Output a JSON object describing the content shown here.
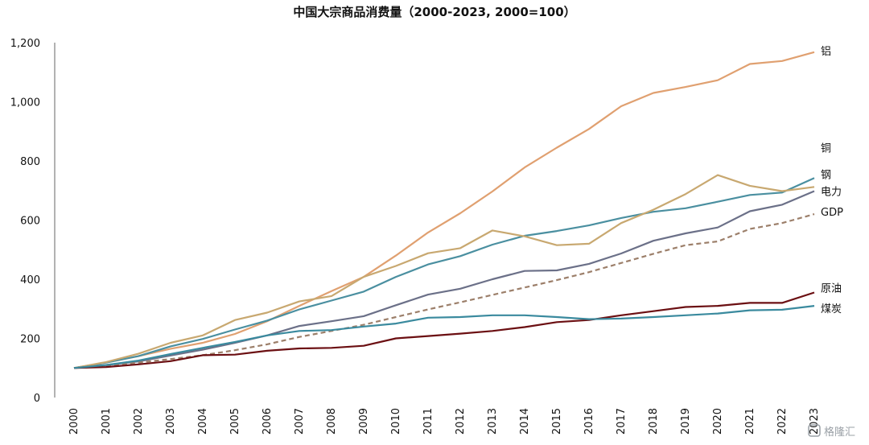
{
  "chart_data": {
    "type": "line",
    "title": "中国大宗商品消费量（2000-2023, 2000=100）",
    "xlabel": "",
    "ylabel": "",
    "x": [
      "2000",
      "2001",
      "2002",
      "2003",
      "2004",
      "2005",
      "2006",
      "2007",
      "2008",
      "2009",
      "2010",
      "2011",
      "2012",
      "2013",
      "2014",
      "2015",
      "2016",
      "2017",
      "2018",
      "2019",
      "2020",
      "2021",
      "2022",
      "2023"
    ],
    "ylim": [
      0,
      1200
    ],
    "yticks": [
      0,
      200,
      400,
      600,
      800,
      1000,
      1200
    ],
    "ytick_labels": [
      "0",
      "200",
      "400",
      "600",
      "800",
      "1,000",
      "1,200"
    ],
    "grid": false,
    "series": [
      {
        "name": "铝",
        "color": "#e0a070",
        "dash": false,
        "values": [
          100,
          118,
          140,
          165,
          185,
          215,
          258,
          310,
          360,
          408,
          480,
          558,
          623,
          697,
          778,
          845,
          908,
          985,
          1030,
          1050,
          1073,
          1128,
          1138,
          1168
        ]
      },
      {
        "name": "铜",
        "color": "#4a8fa0",
        "dash": false,
        "values": [
          100,
          118,
          140,
          173,
          198,
          230,
          260,
          298,
          328,
          358,
          408,
          450,
          478,
          517,
          547,
          563,
          582,
          607,
          628,
          640,
          662,
          685,
          693,
          742
        ]
      },
      {
        "name": "钢",
        "color": "#c8a870",
        "dash": false,
        "values": [
          100,
          120,
          148,
          185,
          210,
          262,
          287,
          325,
          343,
          408,
          445,
          488,
          505,
          565,
          545,
          515,
          520,
          590,
          635,
          688,
          752,
          716,
          698,
          712
        ]
      },
      {
        "name": "电力",
        "color": "#6b7088",
        "dash": false,
        "values": [
          100,
          110,
          122,
          142,
          162,
          185,
          210,
          242,
          258,
          275,
          312,
          348,
          368,
          400,
          428,
          430,
          452,
          487,
          530,
          555,
          575,
          630,
          652,
          698
        ]
      },
      {
        "name": "GDP",
        "color": "#9c7f6a",
        "dash": true,
        "values": [
          100,
          108,
          118,
          130,
          143,
          160,
          180,
          205,
          225,
          246,
          272,
          298,
          322,
          347,
          372,
          397,
          424,
          455,
          486,
          515,
          528,
          570,
          590,
          620
        ]
      },
      {
        "name": "原油",
        "color": "#6b0f12",
        "dash": false,
        "values": [
          100,
          103,
          112,
          123,
          143,
          145,
          158,
          166,
          168,
          175,
          200,
          208,
          216,
          225,
          238,
          255,
          262,
          278,
          292,
          306,
          310,
          320,
          320,
          355
        ]
      },
      {
        "name": "煤炭",
        "color": "#3a8a9e",
        "dash": false,
        "values": [
          100,
          110,
          125,
          147,
          168,
          188,
          210,
          225,
          228,
          240,
          250,
          270,
          272,
          278,
          278,
          272,
          265,
          267,
          272,
          278,
          284,
          295,
          297,
          310
        ]
      }
    ]
  },
  "watermark": "格隆汇"
}
